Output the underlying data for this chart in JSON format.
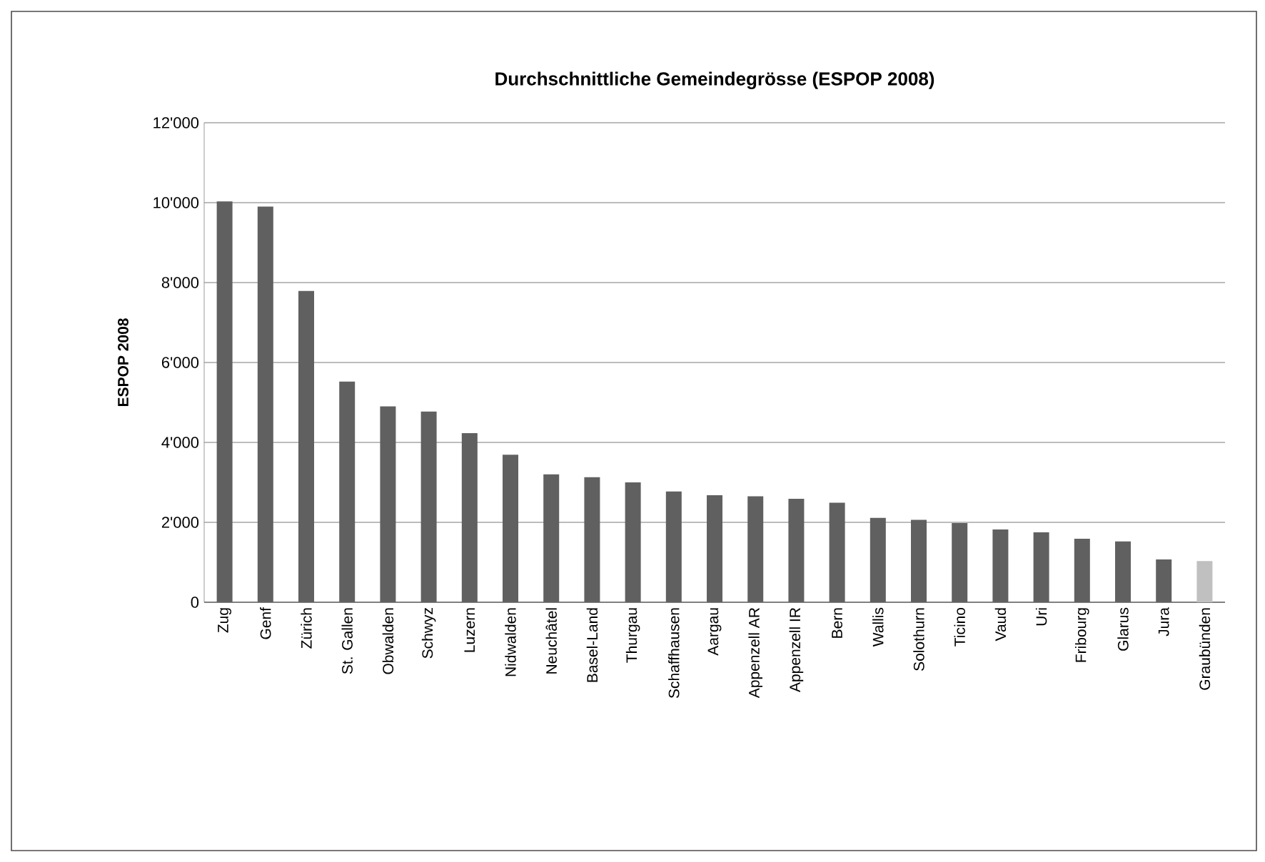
{
  "chart_data": {
    "type": "bar",
    "title": "Durchschnittliche Gemeindegrösse (ESPOP 2008)",
    "ylabel": "ESPOP 2008",
    "categories": [
      "Zug",
      "Genf",
      "Zürich",
      "St. Gallen",
      "Obwalden",
      "Schwyz",
      "Luzern",
      "Nidwalden",
      "Neuchâtel",
      "Basel-Land",
      "Thurgau",
      "Schaffhausen",
      "Aargau",
      "Appenzell AR",
      "Appenzell IR",
      "Bern",
      "Wallis",
      "Solothurn",
      "Ticino",
      "Vaud",
      "Uri",
      "Fribourg",
      "Glarus",
      "Jura",
      "Graubünden"
    ],
    "values": [
      10030,
      9900,
      7790,
      5520,
      4900,
      4770,
      4230,
      3690,
      3200,
      3130,
      3000,
      2770,
      2680,
      2650,
      2590,
      2490,
      2110,
      2060,
      1980,
      1820,
      1750,
      1590,
      1520,
      1070,
      1030
    ],
    "colors": [
      "#606060",
      "#606060",
      "#606060",
      "#606060",
      "#606060",
      "#606060",
      "#606060",
      "#606060",
      "#606060",
      "#606060",
      "#606060",
      "#606060",
      "#606060",
      "#606060",
      "#606060",
      "#606060",
      "#606060",
      "#606060",
      "#606060",
      "#606060",
      "#606060",
      "#606060",
      "#606060",
      "#606060",
      "#c0c0c0"
    ],
    "ylim": [
      0,
      12000
    ],
    "yticks": [
      0,
      {
        "value": 2000,
        "label": "2'000"
      },
      {
        "value": 4000,
        "label": "4'000"
      },
      {
        "value": 6000,
        "label": "6'000"
      },
      {
        "value": 8000,
        "label": "8'000"
      },
      {
        "value": 10000,
        "label": "10'000"
      },
      {
        "value": 12000,
        "label": "12'000"
      }
    ],
    "grid": "y"
  }
}
